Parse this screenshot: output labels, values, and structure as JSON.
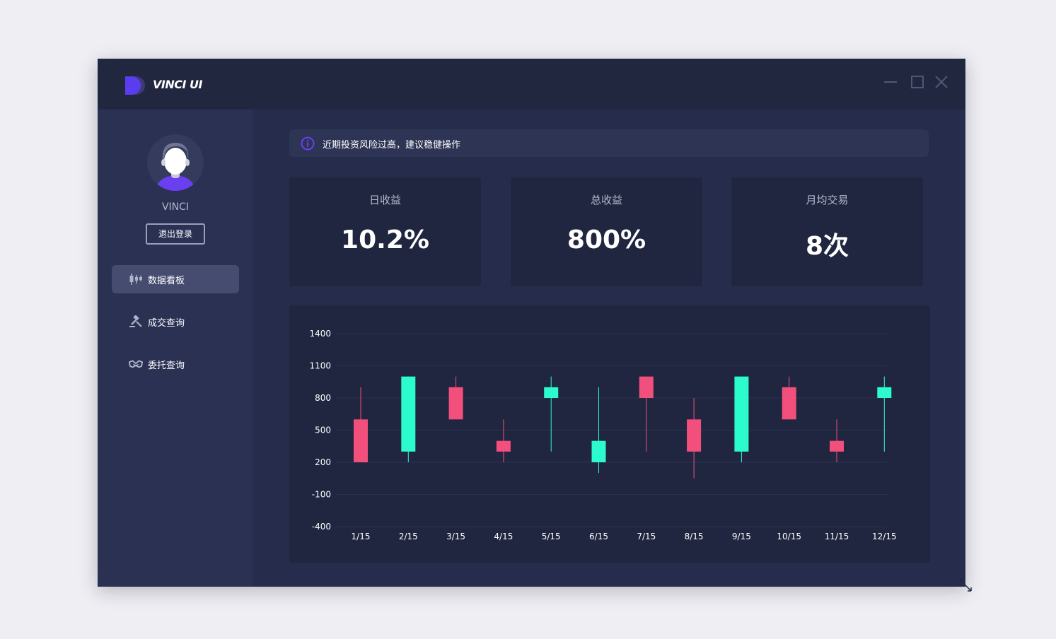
{
  "app": {
    "title": "VINCI UI",
    "logo_icon": "vinci-logo-icon",
    "window_controls": [
      "minimize-icon",
      "maximize-icon",
      "close-icon"
    ]
  },
  "sidebar": {
    "username": "VINCI",
    "logout_label": "退出登录",
    "items": [
      {
        "label": "数据看板",
        "icon": "candlestick-icon",
        "active": true
      },
      {
        "label": "成交查询",
        "icon": "gavel-icon",
        "active": false
      },
      {
        "label": "委托查询",
        "icon": "handshake-icon",
        "active": false
      }
    ]
  },
  "alert": {
    "icon": "info-icon",
    "text": "近期投资风险过高，建议稳健操作"
  },
  "stats": [
    {
      "label": "日收益",
      "value": "10.2%"
    },
    {
      "label": "总收益",
      "value": "800%"
    },
    {
      "label": "月均交易",
      "value": "8次"
    }
  ],
  "colors": {
    "up": "#2cfbce",
    "down": "#f24f7c",
    "accent": "#5b3df0",
    "window_bg": "#262d4c",
    "card_bg": "#212640"
  },
  "chart_data": {
    "type": "candlestick",
    "categories": [
      "1/15",
      "2/15",
      "3/15",
      "4/15",
      "5/15",
      "6/15",
      "7/15",
      "8/15",
      "9/15",
      "10/15",
      "11/15",
      "12/15"
    ],
    "y_ticks": [
      1400,
      1100,
      800,
      500,
      200,
      -100,
      -400
    ],
    "ylim": [
      -400,
      1400
    ],
    "grid": true,
    "candles": [
      {
        "open": 200,
        "close": 600,
        "low": 200,
        "high": 900,
        "direction": "down"
      },
      {
        "open": 300,
        "close": 1000,
        "low": 200,
        "high": 1000,
        "direction": "up"
      },
      {
        "open": 600,
        "close": 900,
        "low": 600,
        "high": 1000,
        "direction": "down"
      },
      {
        "open": 300,
        "close": 400,
        "low": 200,
        "high": 600,
        "direction": "down"
      },
      {
        "open": 800,
        "close": 900,
        "low": 300,
        "high": 1000,
        "direction": "up"
      },
      {
        "open": 200,
        "close": 400,
        "low": 100,
        "high": 900,
        "direction": "up"
      },
      {
        "open": 800,
        "close": 1000,
        "low": 300,
        "high": 1000,
        "direction": "down"
      },
      {
        "open": 300,
        "close": 600,
        "low": 50,
        "high": 800,
        "direction": "down"
      },
      {
        "open": 300,
        "close": 1000,
        "low": 200,
        "high": 1000,
        "direction": "up"
      },
      {
        "open": 600,
        "close": 900,
        "low": 600,
        "high": 1000,
        "direction": "down"
      },
      {
        "open": 300,
        "close": 400,
        "low": 200,
        "high": 600,
        "direction": "down"
      },
      {
        "open": 800,
        "close": 900,
        "low": 300,
        "high": 1000,
        "direction": "up"
      }
    ]
  }
}
